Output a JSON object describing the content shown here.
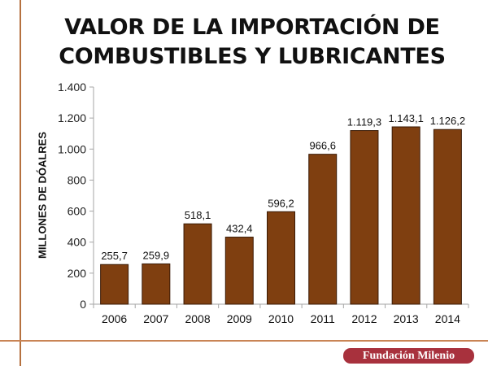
{
  "slide": {
    "title_line1": "VALOR DE LA IMPORTACIÓN DE",
    "title_line2": "COMBUSTIBLES Y LUBRICANTES",
    "logo_text": "Fundación Milenio"
  },
  "chart_data": {
    "type": "bar",
    "title": "VALOR DE LA IMPORTACIÓN DE COMBUSTIBLES Y LUBRICANTES",
    "xlabel": "",
    "ylabel": "MILLONES DE DÓALRES",
    "categories": [
      "2006",
      "2007",
      "2008",
      "2009",
      "2010",
      "2011",
      "2012",
      "2013",
      "2014"
    ],
    "values": [
      255.7,
      259.9,
      518.1,
      432.4,
      596.2,
      966.6,
      1119.3,
      1143.1,
      1126.2
    ],
    "value_labels": [
      "255,7",
      "259,9",
      "518,1",
      "432,4",
      "596,2",
      "966,6",
      "1.119,3",
      "1.143,1",
      "1.126,2"
    ],
    "ylim": [
      0,
      1400
    ],
    "yticks": [
      0,
      200,
      400,
      600,
      800,
      1000,
      1200,
      1400
    ],
    "ytick_labels": [
      "0",
      "200",
      "400",
      "600",
      "800",
      "1.000",
      "1.200",
      "1.400"
    ],
    "grid": false,
    "legend": "none",
    "bar_color": "#7f3f10",
    "bar_edge_color": "#3a1a05"
  }
}
